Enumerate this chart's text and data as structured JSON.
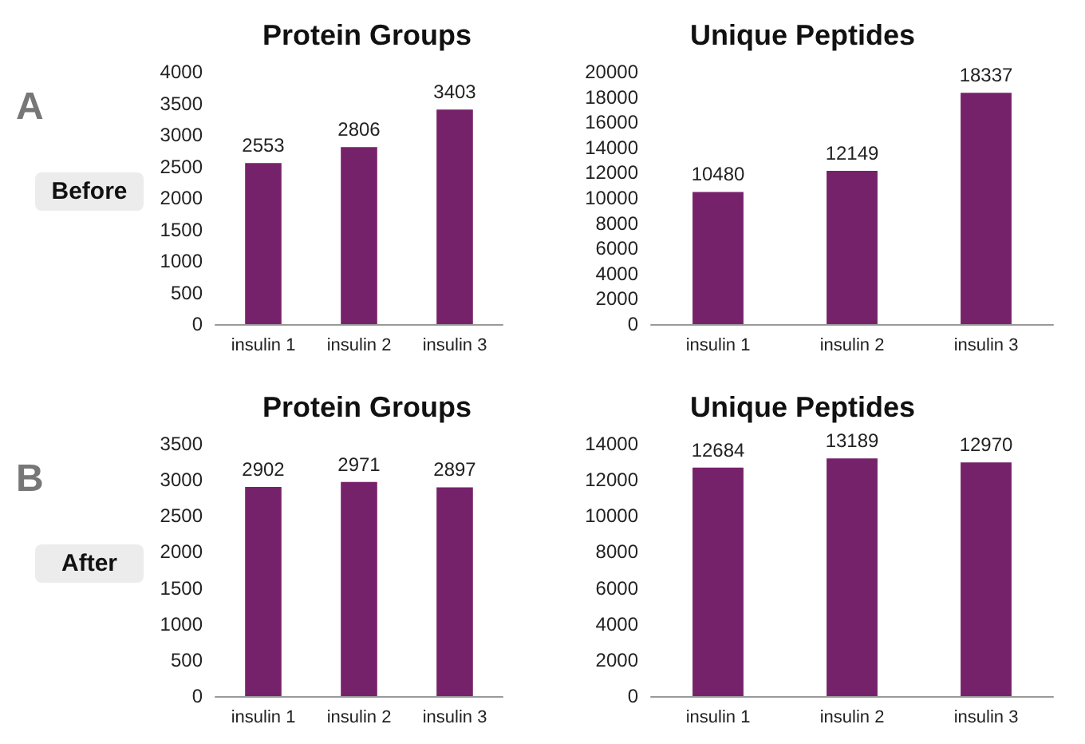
{
  "chart_data": [
    {
      "type": "bar",
      "title": "Protein Groups",
      "categories": [
        "insulin 1",
        "insulin 2",
        "insulin 3"
      ],
      "values": [
        2553,
        2806,
        3403
      ],
      "color": "#76226a",
      "ylim": [
        0,
        4000
      ],
      "yticks": [
        0,
        500,
        1000,
        1500,
        2000,
        2500,
        3000,
        3500,
        4000
      ],
      "data_labels": true,
      "annotations": [
        "A",
        "Before"
      ]
    },
    {
      "type": "bar",
      "title": "Unique Peptides",
      "categories": [
        "insulin 1",
        "insulin 2",
        "insulin 3"
      ],
      "values": [
        10480,
        12149,
        18337
      ],
      "color": "#76226a",
      "ylim": [
        0,
        20000
      ],
      "yticks": [
        0,
        2000,
        4000,
        6000,
        8000,
        10000,
        12000,
        14000,
        16000,
        18000,
        20000
      ],
      "data_labels": true
    },
    {
      "type": "bar",
      "title": "Protein Groups",
      "categories": [
        "insulin 1",
        "insulin 2",
        "insulin 3"
      ],
      "values": [
        2902,
        2971,
        2897
      ],
      "color": "#76226a",
      "ylim": [
        0,
        3500
      ],
      "yticks": [
        0,
        500,
        1000,
        1500,
        2000,
        2500,
        3000,
        3500
      ],
      "data_labels": true,
      "annotations": [
        "B",
        "After"
      ]
    },
    {
      "type": "bar",
      "title": "Unique Peptides",
      "categories": [
        "insulin 1",
        "insulin 2",
        "insulin 3"
      ],
      "values": [
        12684,
        13189,
        12970
      ],
      "color": "#76226a",
      "ylim": [
        0,
        14000
      ],
      "yticks": [
        0,
        2000,
        4000,
        6000,
        8000,
        10000,
        12000,
        14000
      ],
      "data_labels": true
    }
  ]
}
